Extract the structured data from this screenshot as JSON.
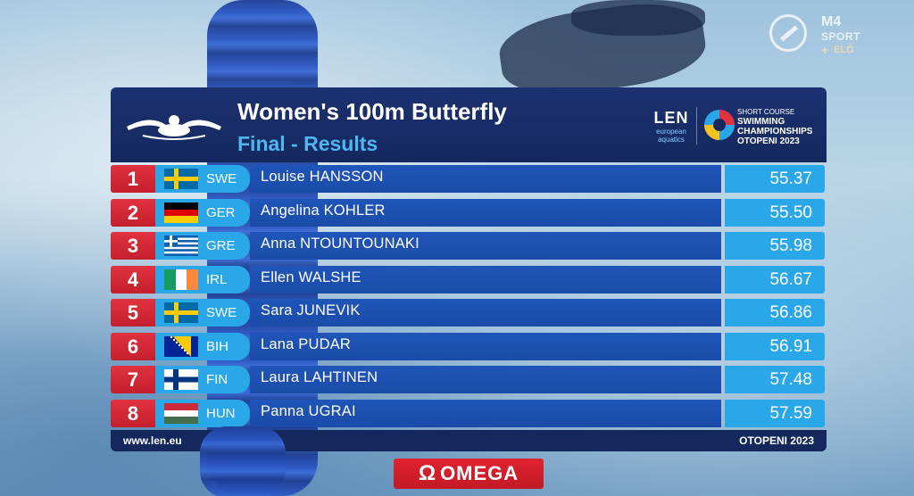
{
  "broadcaster": {
    "channel": "M4",
    "sport": "SPORT",
    "live": "ELŐ"
  },
  "header": {
    "title": "Women's 100m Butterfly",
    "subtitle": "Final - Results",
    "len_logo": "LEN",
    "len_sub1": "european",
    "len_sub2": "aquatics",
    "champ_line1": "SHORT COURSE",
    "champ_line2": "SWIMMING",
    "champ_line3": "CHAMPIONSHIPS",
    "champ_line4": "OTOPENI 2023"
  },
  "results": [
    {
      "rank": "1",
      "flag": "swe-flag-icon",
      "code": "SWE",
      "name": "Louise HANSSON",
      "time": "55.37"
    },
    {
      "rank": "2",
      "flag": "ger-flag-icon",
      "code": "GER",
      "name": "Angelina KOHLER",
      "time": "55.50"
    },
    {
      "rank": "3",
      "flag": "gre-flag-icon",
      "code": "GRE",
      "name": "Anna NTOUNTOUNAKI",
      "time": "55.98"
    },
    {
      "rank": "4",
      "flag": "irl-flag-icon",
      "code": "IRL",
      "name": "Ellen WALSHE",
      "time": "56.67"
    },
    {
      "rank": "5",
      "flag": "swe-flag-icon",
      "code": "SWE",
      "name": "Sara JUNEVIK",
      "time": "56.86"
    },
    {
      "rank": "6",
      "flag": "bih-flag-icon",
      "code": "BIH",
      "name": "Lana PUDAR",
      "time": "56.91"
    },
    {
      "rank": "7",
      "flag": "fin-flag-icon",
      "code": "FIN",
      "name": "Laura LAHTINEN",
      "time": "57.48"
    },
    {
      "rank": "8",
      "flag": "hun-flag-icon",
      "code": "HUN",
      "name": "Panna UGRAI",
      "time": "57.59"
    }
  ],
  "footer": {
    "url": "www.len.eu",
    "location": "OTOPENI 2023"
  },
  "sponsor": {
    "symbol": "Ω",
    "name": "OMEGA"
  },
  "colors": {
    "header_bg": "#1c3170",
    "subtitle": "#4fb6f2",
    "rank_red": "#e0323f",
    "country_cyan": "#2aa7e8",
    "name_bar_blue": "#1f55b9"
  }
}
